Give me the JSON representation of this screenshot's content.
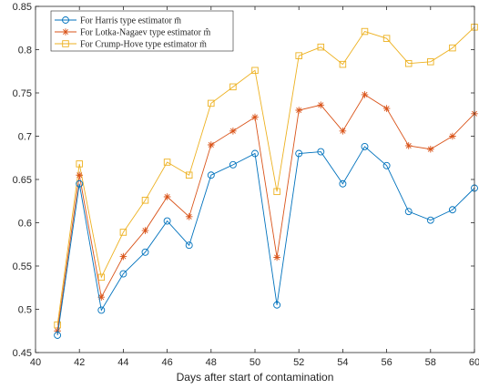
{
  "chart_data": {
    "type": "line",
    "xlabel": "Days after start of contamination",
    "ylabel": "",
    "xlim": [
      40,
      60
    ],
    "ylim": [
      0.45,
      0.85
    ],
    "xticks": [
      40,
      42,
      44,
      46,
      48,
      50,
      52,
      54,
      56,
      58,
      60
    ],
    "yticks": [
      0.45,
      0.5,
      0.55,
      0.6,
      0.65,
      0.7,
      0.75,
      0.8,
      0.85
    ],
    "xtick_labels": [
      "40",
      "42",
      "44",
      "46",
      "48",
      "50",
      "52",
      "54",
      "56",
      "58",
      "60"
    ],
    "ytick_labels": [
      "0.45",
      "0.5",
      "0.55",
      "0.6",
      "0.65",
      "0.7",
      "0.75",
      "0.8",
      "0.85"
    ],
    "grid": false,
    "legend_position": "top-left",
    "x": [
      41,
      42,
      43,
      44,
      45,
      46,
      47,
      48,
      49,
      50,
      51,
      52,
      53,
      54,
      55,
      56,
      57,
      58,
      59,
      60
    ],
    "series": [
      {
        "name": "For Harris type estimator m̄",
        "color": "#0072BD",
        "marker": "circle",
        "values": [
          0.47,
          0.645,
          0.499,
          0.541,
          0.566,
          0.602,
          0.574,
          0.655,
          0.667,
          0.68,
          0.505,
          0.68,
          0.682,
          0.645,
          0.688,
          0.666,
          0.613,
          0.603,
          0.615,
          0.64
        ]
      },
      {
        "name": "For Lotka-Nagaev type estimator m̂",
        "color": "#D95319",
        "marker": "star",
        "values": [
          0.475,
          0.655,
          0.514,
          0.561,
          0.591,
          0.63,
          0.607,
          0.69,
          0.706,
          0.722,
          0.56,
          0.73,
          0.736,
          0.706,
          0.748,
          0.732,
          0.689,
          0.685,
          0.7,
          0.726
        ]
      },
      {
        "name": "For Crump-Hove type estimator m̃",
        "color": "#EDB120",
        "marker": "square",
        "values": [
          0.482,
          0.668,
          0.537,
          0.589,
          0.626,
          0.67,
          0.655,
          0.738,
          0.757,
          0.776,
          0.636,
          0.793,
          0.803,
          0.783,
          0.821,
          0.813,
          0.784,
          0.786,
          0.802,
          0.826
        ]
      }
    ]
  }
}
